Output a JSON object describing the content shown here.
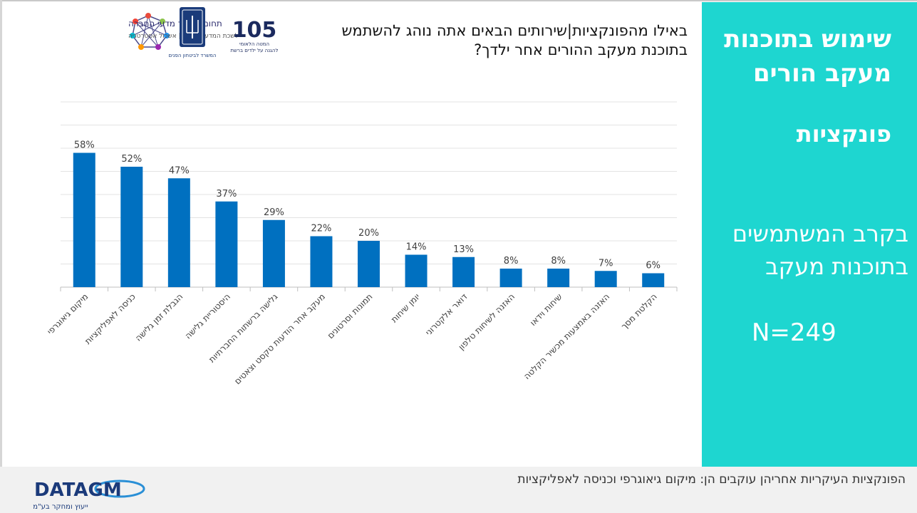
{
  "sidebar": {
    "title": "שימוש בתוכנות מעקב הורים",
    "subtitle": "פונקציות",
    "population": "בקרב המשתמשים בתוכנות מעקב",
    "n": "N=249"
  },
  "question": "באילו מהפונקציות|שירותים הבאים אתה נוהג להשתמש בתוכנת מעקב ההורים אחר ילדך?",
  "footer": {
    "text": "הפונקציות העיקריות אחריהן עוקבים הן: מיקום גיאוגרפי וכניסה לאפליקציות"
  },
  "logos": {
    "research_title": "תחום מחקר מדעי החברה",
    "research_sub": "לשכת המדען הראשי | אשכול אסטרטגיה",
    "ministry": "המשרד לביטחון הפנים",
    "hotline_number": "105",
    "hotline_line1": "המטה הלאומי",
    "hotline_line2": "להגנה על ילדים ברשת",
    "datagm": "DATAGM",
    "datagm_sub": "ייעוץ ומחקר בע\"מ"
  },
  "colors": {
    "bar": "#0070c0",
    "sidebar": "#1ed6d0"
  },
  "chart_data": {
    "type": "bar",
    "categories": [
      "מיקום גיאוגרפי",
      "כניסה לאפליקציות",
      "הגבלת זמן גלישה",
      "היסטוריית גלישה",
      "גלישה ברשתות החברתיות",
      "מעקב אחר הודעות טקסט וצאטים",
      "תמונות וסרטונים",
      "יומן שיחות",
      "דואר אלקטרוני",
      "האזנה לשיחות טלפון",
      "שיחות וידאו",
      "האזנה באמצעות מכשיר הקלטה",
      "הקלטת מסך"
    ],
    "values": [
      58,
      52,
      47,
      37,
      29,
      22,
      20,
      14,
      13,
      8,
      8,
      7,
      6
    ],
    "value_labels": [
      "58%",
      "52%",
      "47%",
      "37%",
      "29%",
      "22%",
      "20%",
      "14%",
      "13%",
      "8%",
      "8%",
      "7%",
      "6%"
    ],
    "ylim": [
      0,
      80
    ],
    "grid": true
  }
}
